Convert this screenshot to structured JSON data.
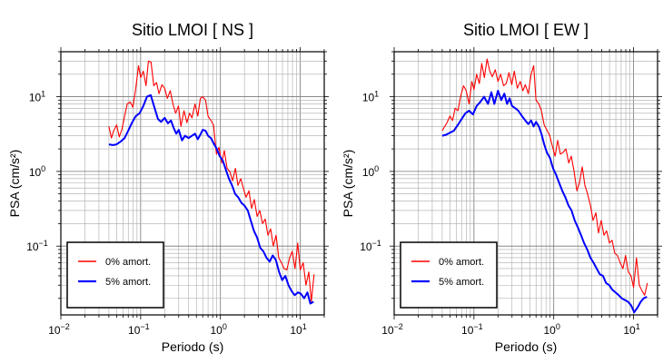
{
  "chart_data": [
    {
      "type": "line",
      "title": "Sitio LMOI [ NS ]",
      "xlabel": "Periodo (s)",
      "ylabel": "PSA (cm/s²)",
      "xscale": "log",
      "yscale": "log",
      "xlim": [
        0.01,
        20
      ],
      "ylim": [
        0.012,
        40
      ],
      "grid": true,
      "legend_position": "bottom-left",
      "xticks": [
        {
          "base": "10",
          "exp": "−2"
        },
        {
          "base": "10",
          "exp": "−1"
        },
        {
          "base": "10",
          "exp": "0"
        },
        {
          "base": "10",
          "exp": "1"
        }
      ],
      "yticks": [
        {
          "base": "10",
          "exp": "−1"
        },
        {
          "base": "10",
          "exp": "0"
        },
        {
          "base": "10",
          "exp": "1"
        }
      ],
      "series": [
        {
          "name": "0% amort.",
          "color": "#ff0000",
          "x": [
            0.04,
            0.043,
            0.046,
            0.05,
            0.054,
            0.058,
            0.063,
            0.068,
            0.074,
            0.08,
            0.087,
            0.094,
            0.1,
            0.108,
            0.117,
            0.125,
            0.135,
            0.146,
            0.158,
            0.17,
            0.185,
            0.2,
            0.216,
            0.235,
            0.254,
            0.275,
            0.298,
            0.32,
            0.35,
            0.38,
            0.41,
            0.44,
            0.48,
            0.52,
            0.56,
            0.6,
            0.65,
            0.7,
            0.76,
            0.82,
            0.89,
            0.96,
            1.04,
            1.12,
            1.21,
            1.31,
            1.42,
            1.54,
            1.66,
            1.8,
            1.95,
            2.1,
            2.28,
            2.46,
            2.66,
            2.88,
            3.11,
            3.37,
            3.64,
            3.94,
            4.26,
            4.6,
            4.98,
            5.38,
            5.82,
            6.3,
            6.8,
            7.36,
            7.96,
            8.6,
            9.3,
            10.0,
            10.9,
            11.8,
            12.8,
            13.8,
            14.9
          ],
          "y": [
            4.0,
            2.8,
            3.5,
            4.2,
            2.9,
            3.6,
            5.5,
            8.0,
            8.5,
            7.2,
            13.0,
            26.0,
            18.0,
            22.0,
            14.0,
            30.0,
            29.0,
            14.0,
            15.5,
            11.0,
            14.5,
            13.0,
            9.5,
            12.0,
            8.0,
            6.0,
            7.5,
            4.0,
            6.5,
            4.5,
            6.0,
            5.2,
            8.0,
            5.5,
            9.5,
            10.0,
            9.0,
            5.5,
            4.8,
            4.2,
            1.7,
            2.1,
            1.3,
            1.9,
            1.1,
            1.0,
            0.75,
            1.1,
            0.65,
            0.8,
            0.58,
            0.45,
            0.55,
            0.32,
            0.42,
            0.25,
            0.3,
            0.2,
            0.23,
            0.14,
            0.17,
            0.1,
            0.14,
            0.07,
            0.06,
            0.05,
            0.048,
            0.07,
            0.085,
            0.05,
            0.11,
            0.048,
            0.06,
            0.03,
            0.045,
            0.018,
            0.042
          ]
        },
        {
          "name": "5% amort.",
          "color": "#0000ff",
          "x": [
            0.04,
            0.045,
            0.05,
            0.056,
            0.063,
            0.07,
            0.078,
            0.087,
            0.097,
            0.108,
            0.12,
            0.134,
            0.15,
            0.165,
            0.18,
            0.2,
            0.22,
            0.24,
            0.26,
            0.28,
            0.3,
            0.33,
            0.36,
            0.4,
            0.44,
            0.48,
            0.52,
            0.56,
            0.6,
            0.65,
            0.7,
            0.76,
            0.82,
            0.9,
            0.98,
            1.07,
            1.17,
            1.28,
            1.4,
            1.53,
            1.67,
            1.83,
            2.0,
            2.2,
            2.4,
            2.63,
            2.88,
            3.15,
            3.45,
            3.78,
            4.14,
            4.53,
            4.96,
            5.43,
            5.95,
            6.51,
            7.13,
            7.8,
            8.54,
            9.35,
            10.2,
            11.2,
            12.3,
            13.4,
            14.7
          ],
          "y": [
            2.3,
            2.25,
            2.3,
            2.5,
            2.8,
            3.5,
            4.5,
            5.5,
            6.0,
            7.5,
            10.0,
            10.5,
            7.0,
            5.0,
            4.6,
            5.2,
            4.4,
            4.8,
            3.8,
            3.2,
            3.6,
            2.6,
            3.0,
            2.8,
            3.0,
            3.2,
            2.7,
            3.1,
            3.6,
            3.5,
            3.0,
            2.8,
            2.4,
            2.0,
            1.6,
            1.4,
            1.05,
            0.8,
            0.65,
            0.5,
            0.45,
            0.38,
            0.35,
            0.3,
            0.22,
            0.16,
            0.13,
            0.095,
            0.085,
            0.07,
            0.062,
            0.075,
            0.065,
            0.045,
            0.035,
            0.04,
            0.03,
            0.025,
            0.022,
            0.024,
            0.023,
            0.02,
            0.024,
            0.017,
            0.018
          ]
        }
      ]
    },
    {
      "type": "line",
      "title": "Sitio LMOI [ EW ]",
      "xlabel": "Periodo (s)",
      "ylabel": "PSA (cm/s²)",
      "xscale": "log",
      "yscale": "log",
      "xlim": [
        0.01,
        20
      ],
      "ylim": [
        0.012,
        40
      ],
      "grid": true,
      "legend_position": "bottom-left",
      "xticks": [
        {
          "base": "10",
          "exp": "−2"
        },
        {
          "base": "10",
          "exp": "−1"
        },
        {
          "base": "10",
          "exp": "0"
        },
        {
          "base": "10",
          "exp": "1"
        }
      ],
      "yticks": [
        {
          "base": "10",
          "exp": "−1"
        },
        {
          "base": "10",
          "exp": "0"
        },
        {
          "base": "10",
          "exp": "1"
        }
      ],
      "series": [
        {
          "name": "0% amort.",
          "color": "#ff0000",
          "x": [
            0.04,
            0.043,
            0.046,
            0.05,
            0.054,
            0.058,
            0.063,
            0.068,
            0.074,
            0.08,
            0.087,
            0.094,
            0.1,
            0.108,
            0.117,
            0.125,
            0.135,
            0.146,
            0.158,
            0.17,
            0.185,
            0.2,
            0.216,
            0.235,
            0.254,
            0.275,
            0.298,
            0.32,
            0.35,
            0.38,
            0.41,
            0.44,
            0.48,
            0.52,
            0.56,
            0.6,
            0.65,
            0.7,
            0.76,
            0.82,
            0.89,
            0.96,
            1.04,
            1.12,
            1.21,
            1.31,
            1.42,
            1.54,
            1.66,
            1.8,
            1.95,
            2.1,
            2.28,
            2.46,
            2.66,
            2.88,
            3.11,
            3.37,
            3.64,
            3.94,
            4.26,
            4.6,
            4.98,
            5.38,
            5.82,
            6.3,
            6.8,
            7.36,
            7.96,
            8.6,
            9.3,
            10.0,
            10.9,
            11.8,
            12.8,
            13.8,
            14.9
          ],
          "y": [
            3.5,
            4.0,
            4.5,
            5.5,
            4.8,
            7.0,
            6.5,
            10.0,
            14.0,
            12.0,
            8.0,
            16.0,
            12.5,
            20.0,
            15.0,
            28.0,
            18.0,
            32.0,
            22.0,
            18.5,
            23.0,
            16.0,
            20.0,
            14.0,
            15.0,
            21.0,
            14.5,
            22.0,
            13.0,
            16.0,
            12.0,
            14.5,
            11.0,
            20.0,
            26.0,
            9.0,
            8.0,
            6.5,
            4.2,
            3.6,
            3.0,
            2.2,
            1.6,
            2.6,
            1.7,
            1.8,
            2.0,
            1.3,
            1.6,
            1.0,
            0.55,
            0.7,
            1.15,
            0.65,
            0.5,
            0.35,
            0.22,
            0.28,
            0.15,
            0.22,
            0.14,
            0.16,
            0.11,
            0.12,
            0.08,
            0.075,
            0.06,
            0.05,
            0.075,
            0.045,
            0.04,
            0.028,
            0.07,
            0.03,
            0.025,
            0.022,
            0.032
          ]
        },
        {
          "name": "5% amort.",
          "color": "#0000ff",
          "x": [
            0.04,
            0.045,
            0.05,
            0.056,
            0.063,
            0.07,
            0.078,
            0.087,
            0.097,
            0.108,
            0.12,
            0.134,
            0.15,
            0.165,
            0.18,
            0.2,
            0.22,
            0.24,
            0.26,
            0.28,
            0.3,
            0.33,
            0.36,
            0.4,
            0.44,
            0.48,
            0.52,
            0.56,
            0.6,
            0.65,
            0.7,
            0.76,
            0.82,
            0.9,
            0.98,
            1.07,
            1.17,
            1.28,
            1.4,
            1.53,
            1.67,
            1.83,
            2.0,
            2.2,
            2.4,
            2.63,
            2.88,
            3.15,
            3.45,
            3.78,
            4.14,
            4.53,
            4.96,
            5.43,
            5.95,
            6.51,
            7.13,
            7.8,
            8.54,
            9.35,
            10.2,
            11.2,
            12.3,
            13.4,
            14.7
          ],
          "y": [
            3.0,
            3.1,
            3.3,
            3.5,
            4.2,
            5.0,
            6.0,
            6.5,
            5.8,
            7.5,
            8.5,
            10.0,
            8.0,
            11.5,
            8.0,
            12.0,
            9.0,
            11.0,
            8.0,
            9.5,
            7.5,
            7.0,
            6.5,
            5.5,
            4.8,
            4.3,
            4.8,
            4.0,
            4.6,
            4.0,
            3.2,
            2.3,
            1.8,
            1.5,
            1.1,
            0.9,
            0.7,
            0.55,
            0.45,
            0.35,
            0.3,
            0.22,
            0.18,
            0.14,
            0.11,
            0.09,
            0.07,
            0.06,
            0.05,
            0.042,
            0.04,
            0.032,
            0.03,
            0.026,
            0.024,
            0.022,
            0.02,
            0.019,
            0.018,
            0.016,
            0.013,
            0.015,
            0.018,
            0.02,
            0.021
          ]
        }
      ]
    }
  ]
}
